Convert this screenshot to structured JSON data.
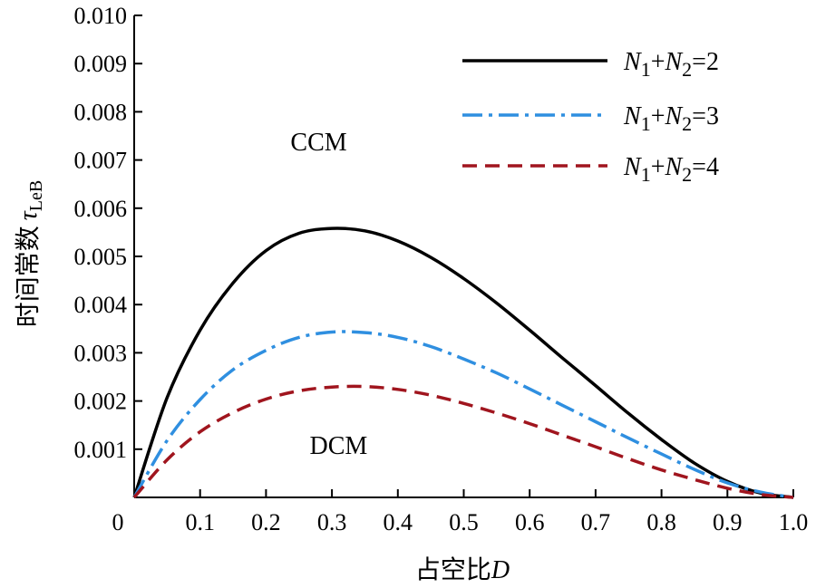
{
  "chart_data": {
    "type": "line",
    "xlabel": {
      "prefix": "占空比",
      "var": "D"
    },
    "ylabel": {
      "prefix": "时间常数",
      "var": "τ",
      "sub": "LeB"
    },
    "xlim": [
      0,
      1.0
    ],
    "ylim": [
      0,
      0.01
    ],
    "xticks": [
      "0",
      "0.1",
      "0.2",
      "0.3",
      "0.4",
      "0.5",
      "0.6",
      "0.7",
      "0.8",
      "0.9",
      "1.0"
    ],
    "yticks": [
      "0.001",
      "0.002",
      "0.003",
      "0.004",
      "0.005",
      "0.006",
      "0.007",
      "0.008",
      "0.009",
      "0.010"
    ],
    "grid": false,
    "legend_position": "top-right",
    "annotations": [
      {
        "text": "CCM",
        "x": 0.28,
        "y": 0.0072
      },
      {
        "text": "DCM",
        "x": 0.31,
        "y": 0.0009
      }
    ],
    "x": [
      0,
      0.05,
      0.1,
      0.15,
      0.2,
      0.25,
      0.3,
      0.35,
      0.4,
      0.45,
      0.5,
      0.55,
      0.6,
      0.65,
      0.7,
      0.75,
      0.8,
      0.85,
      0.9,
      0.95,
      1.0
    ],
    "series": [
      {
        "name": {
          "n1": "N",
          "s1": "1",
          "plus": "+",
          "n2": "N",
          "s2": "2",
          "eq": "=2"
        },
        "color": "#000000",
        "dash": "solid",
        "values": [
          0,
          0.00207,
          0.00347,
          0.00445,
          0.00512,
          0.00548,
          0.00558,
          0.00553,
          0.00532,
          0.00498,
          0.00454,
          0.00403,
          0.00347,
          0.00289,
          0.00232,
          0.00174,
          0.0012,
          0.00071,
          0.00033,
          9e-05,
          0
        ]
      },
      {
        "name": {
          "n1": "N",
          "s1": "1",
          "plus": "+",
          "n2": "N",
          "s2": "2",
          "eq": "=3"
        },
        "color": "#2f8fe0",
        "dash": "dashdot",
        "values": [
          0,
          0.00118,
          0.00203,
          0.00265,
          0.00305,
          0.00332,
          0.00343,
          0.00342,
          0.00332,
          0.00313,
          0.00287,
          0.00258,
          0.00225,
          0.00191,
          0.00157,
          0.00123,
          0.0009,
          0.00058,
          0.0003,
          0.00011,
          0
        ]
      },
      {
        "name": {
          "n1": "N",
          "s1": "1",
          "plus": "+",
          "n2": "N",
          "s2": "2",
          "eq": "=4"
        },
        "color": "#a0151e",
        "dash": "dashed",
        "values": [
          0,
          0.00078,
          0.00136,
          0.00176,
          0.00204,
          0.00221,
          0.00229,
          0.0023,
          0.00224,
          0.00212,
          0.00195,
          0.00175,
          0.00153,
          0.00129,
          0.00105,
          0.0008,
          0.00057,
          0.00037,
          0.00019,
          6e-05,
          0
        ]
      }
    ]
  }
}
